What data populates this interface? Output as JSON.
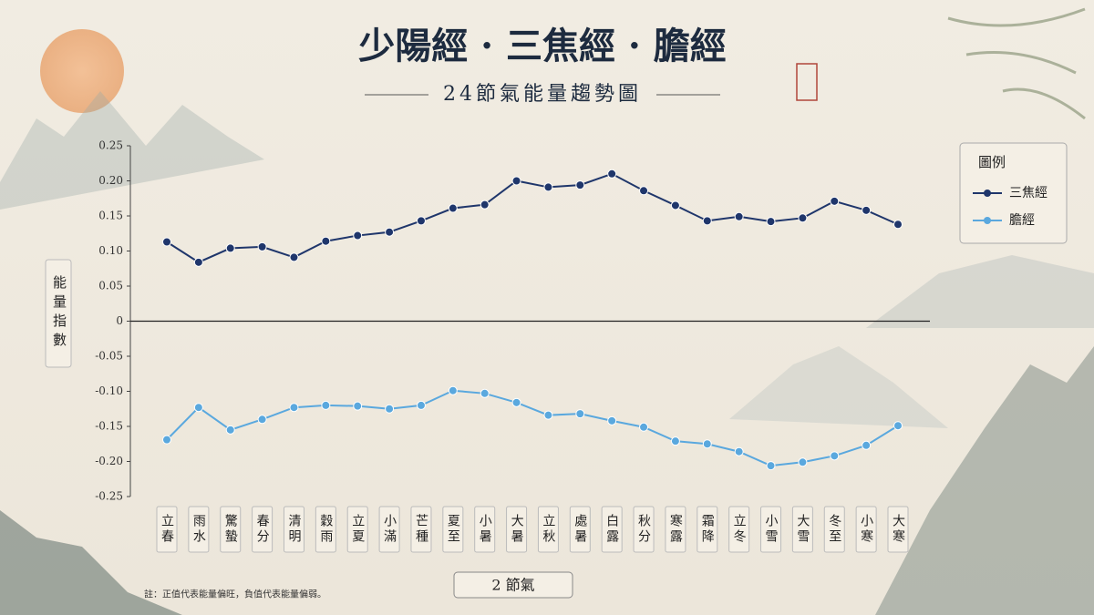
{
  "chart_data": {
    "type": "line",
    "title": "少陽經 · 三焦經 · 膽經",
    "subtitle": "24節氣能量趨勢圖",
    "y_label": "能量指數",
    "x_label": "2 節氣",
    "note": "註：正值代表能量偏旺，負值代表能量偏弱。",
    "legend_title": "圖例",
    "legend": "upper right",
    "zero_line": true,
    "categories": [
      "立春",
      "雨水",
      "驚蟄",
      "春分",
      "清明",
      "穀雨",
      "立夏",
      "小滿",
      "芒種",
      "夏至",
      "小暑",
      "大暑",
      "立秋",
      "處暑",
      "白露",
      "秋分",
      "寒露",
      "霜降",
      "立冬",
      "小雪",
      "大雪",
      "冬至",
      "小寒",
      "大寒"
    ],
    "series": [
      {
        "name": "三焦經",
        "color": "#1f366b",
        "values": [
          0.113,
          0.084,
          0.104,
          0.106,
          0.091,
          0.114,
          0.122,
          0.127,
          0.143,
          0.161,
          0.166,
          0.2,
          0.191,
          0.194,
          0.21,
          0.186,
          0.165,
          0.143,
          0.149,
          0.142,
          0.147,
          0.171,
          0.158,
          0.138
        ]
      },
      {
        "name": "膽經",
        "color": "#5aa8de",
        "values": [
          -0.169,
          -0.123,
          -0.155,
          -0.14,
          -0.123,
          -0.12,
          -0.121,
          -0.125,
          -0.12,
          -0.099,
          -0.103,
          -0.116,
          -0.134,
          -0.132,
          -0.142,
          -0.151,
          -0.171,
          -0.175,
          -0.186,
          -0.206,
          -0.201,
          -0.192,
          -0.177,
          -0.149
        ]
      }
    ],
    "ylim": [
      -0.25,
      0.25
    ],
    "yticks": [
      0.25,
      {
        "value": 0.2,
        "label": "0.20"
      },
      0.15,
      {
        "value": 0.1,
        "label": "0.10"
      },
      0.05,
      0,
      -0.05,
      {
        "value": -0.1,
        "label": "-0.10"
      },
      -0.15,
      {
        "value": -0.2,
        "label": "-0.20"
      },
      -0.25
    ]
  }
}
